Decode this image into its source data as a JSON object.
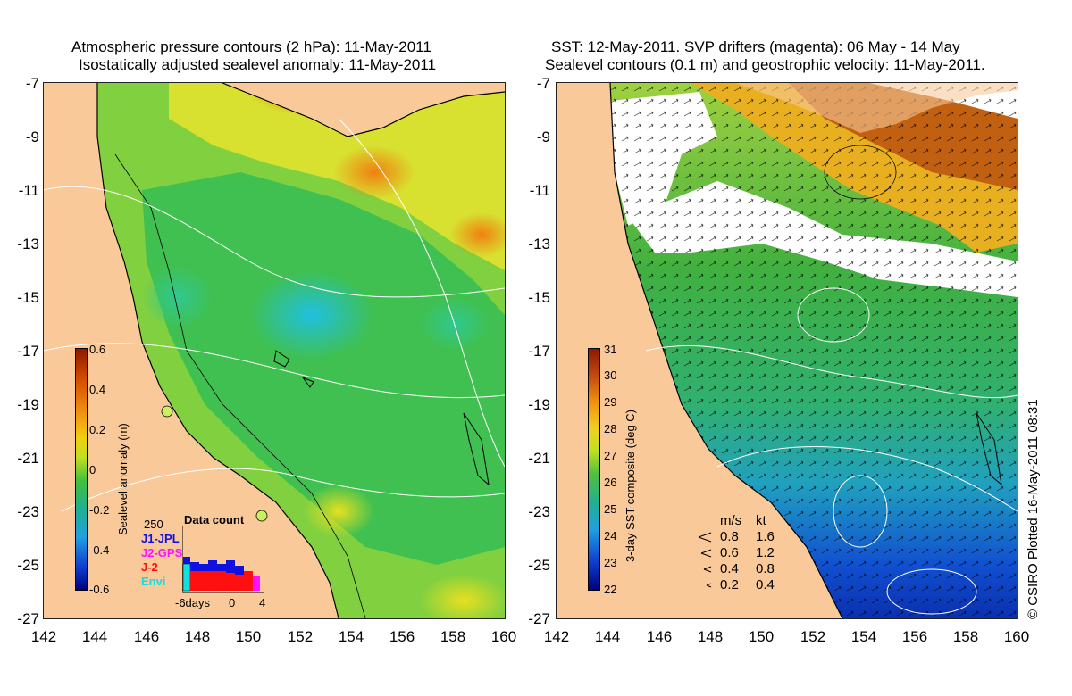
{
  "left_panel": {
    "title_line1": "Atmospheric pressure contours (2 hPa): 11-May-2011",
    "title_line2": "Isostatically adjusted sealevel anomaly: 11-May-2011",
    "colorbar": {
      "label": "Sealevel anomaly (m)",
      "ticks": [
        "0.6",
        "0.4",
        "0.2",
        "0",
        "-0.2",
        "-0.4",
        "-0.6"
      ],
      "range": [
        -0.6,
        0.6
      ]
    },
    "data_count": {
      "title": "Data count",
      "max_label": "250",
      "missions": [
        {
          "name": "J1-JPL",
          "color": "#1010e0"
        },
        {
          "name": "J2-GPS",
          "color": "#ff10ff"
        },
        {
          "name": "J-2",
          "color": "#ff1010"
        },
        {
          "name": "Envi",
          "color": "#10e0e0"
        }
      ],
      "axis_labels": [
        "-6days",
        "0",
        "4"
      ]
    }
  },
  "right_panel": {
    "title_line1": "SST: 12-May-2011. SVP drifters (magenta): 06 May - 14 May",
    "title_line2": "Sealevel contours (0.1 m) and geostrophic velocity: 11-May-2011.",
    "colorbar": {
      "label": "3-day SST composite (deg C)",
      "ticks": [
        "31",
        "30",
        "29",
        "28",
        "27",
        "26",
        "25",
        "24",
        "23",
        "22"
      ],
      "range": [
        22,
        31
      ]
    },
    "velocity_legend": {
      "header_ms": "m/s",
      "header_kt": "kt",
      "rows": [
        {
          "ms": "0.8",
          "kt": "1.6"
        },
        {
          "ms": "0.6",
          "kt": "1.2"
        },
        {
          "ms": "0.4",
          "kt": "0.8"
        },
        {
          "ms": "0.2",
          "kt": "0.4"
        }
      ]
    }
  },
  "axes": {
    "lat_ticks": [
      "-7",
      "-9",
      "-11",
      "-13",
      "-15",
      "-17",
      "-19",
      "-21",
      "-23",
      "-25",
      "-27"
    ],
    "lon_ticks": [
      "142",
      "144",
      "146",
      "148",
      "150",
      "152",
      "154",
      "156",
      "158",
      "160"
    ],
    "lat_range": [
      -27,
      -7
    ],
    "lon_range": [
      142,
      160
    ]
  },
  "credit": "© CSIRO Plotted 16-May-2011 08:31",
  "colors": {
    "land": "#f9c99a",
    "contour": "#ffffff",
    "coast": "#000000"
  }
}
